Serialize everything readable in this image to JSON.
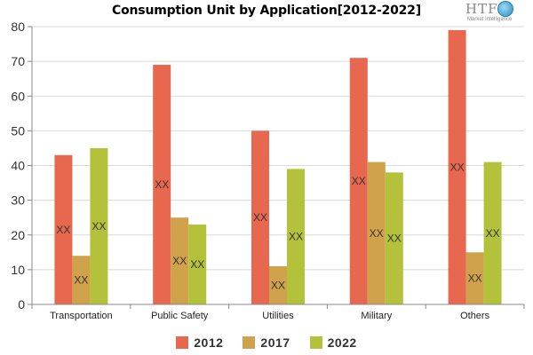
{
  "chart_data": {
    "type": "bar",
    "title": "Consumption Unit by  Application[2012-2022]",
    "xlabel": "",
    "ylabel": "",
    "categories": [
      "Transportation",
      "Public Safety",
      "Utilities",
      "Military",
      "Others"
    ],
    "series": [
      {
        "name": "2012",
        "color": "#e8684f",
        "values": [
          43,
          69,
          50,
          71,
          79
        ]
      },
      {
        "name": "2017",
        "color": "#cfa24b",
        "values": [
          14,
          25,
          11,
          41,
          15
        ]
      },
      {
        "name": "2022",
        "color": "#b3c23a",
        "values": [
          45,
          23,
          39,
          38,
          41
        ]
      }
    ],
    "data_label": "XX",
    "ylim": [
      0,
      80
    ],
    "yticks": [
      0,
      10,
      20,
      30,
      40,
      50,
      60,
      70,
      80
    ],
    "grid": true,
    "legend_position": "bottom"
  },
  "logo": {
    "text": "HTF",
    "subtext": "Market Intelligence"
  }
}
